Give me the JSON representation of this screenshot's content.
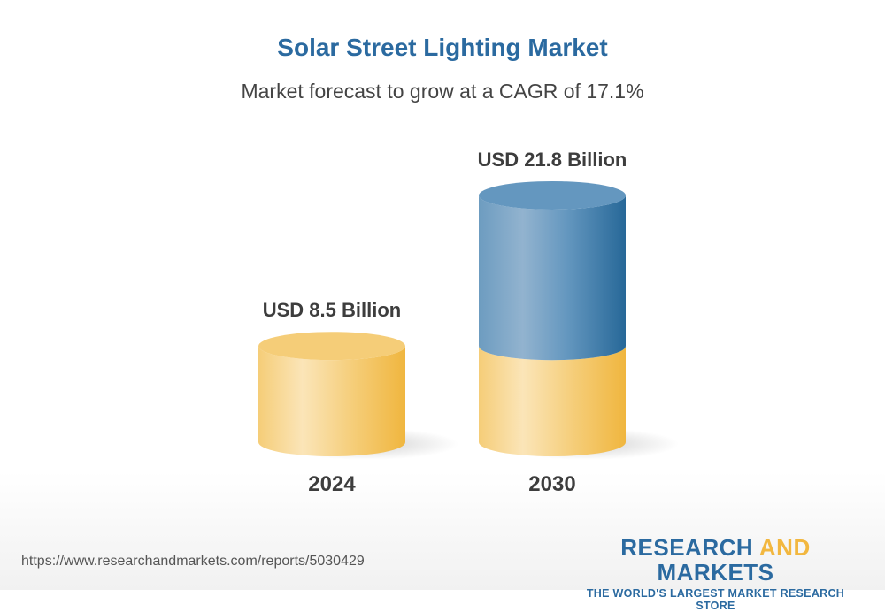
{
  "title": "Solar Street Lighting Market",
  "subtitle": "Market forecast to grow at a CAGR of 17.1%",
  "chart_data": {
    "type": "bar",
    "style": "3d-cylinder",
    "categories": [
      "2024",
      "2030"
    ],
    "values": [
      8.5,
      21.8
    ],
    "unit": "USD Billion",
    "data_labels": [
      "USD 8.5 Billion",
      "USD 21.8 Billion"
    ],
    "cagr": "17.1%",
    "colors": {
      "base": "#f5c76a",
      "growth": "#2b6aa0"
    },
    "grid": false
  },
  "footer": {
    "url": "https://www.researchandmarkets.com/reports/5030429",
    "logo_line1_a": "RESEARCH ",
    "logo_line1_b": "AND",
    "logo_line1_c": " MARKETS",
    "logo_line2": "THE WORLD'S LARGEST MARKET RESEARCH STORE"
  }
}
